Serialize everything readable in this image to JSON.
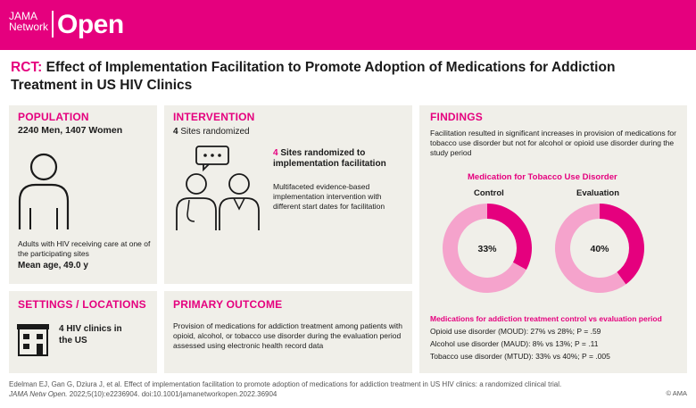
{
  "header": {
    "logo_line1": "JAMA",
    "logo_line2": "Network",
    "logo_big": "Open",
    "brand_color": "#e5007e"
  },
  "title": {
    "prefix": "RCT:",
    "text": "Effect of Implementation Facilitation to Promote Adoption of Medications for Addiction Treatment in US HIV Clinics"
  },
  "population": {
    "label": "POPULATION",
    "counts": "2240 Men, 1407 Women",
    "description": "Adults with HIV receiving care at one of the participating sites",
    "mean_age": "Mean age, 49.0 y",
    "icon": "person-icon"
  },
  "intervention": {
    "label": "INTERVENTION",
    "sites": "4 Sites randomized",
    "group_number": "4",
    "group_title": "Sites randomized to implementation facilitation",
    "group_description": "Multifaceted evidence-based implementation intervention with different start dates for facilitation",
    "icon": "clinicians-icon"
  },
  "settings": {
    "label": "SETTINGS / LOCATIONS",
    "text": "4 HIV clinics in the US",
    "icon": "building-icon"
  },
  "outcome": {
    "label": "PRIMARY OUTCOME",
    "text": "Provision of medications for addiction treatment among patients with opioid, alcohol, or tobacco use disorder during the evaluation period assessed using electronic health record data"
  },
  "findings": {
    "label": "FINDINGS",
    "text": "Facilitation resulted in significant increases in provision of medications for tobacco use disorder but not for alcohol or opioid use disorder during the study period",
    "chart_title": "Medication for Tobacco Use Disorder",
    "list_title": "Medications for addiction treatment control vs evaluation period",
    "rows": [
      "Opioid use disorder (MOUD): 27% vs 28%; P = .59",
      "Alcohol use disorder (MAUD): 8% vs 13%; P = .11",
      "Tobacco use disorder (MTUD): 33% vs 40%; P = .005"
    ]
  },
  "chart_data": [
    {
      "type": "pie",
      "title": "Control",
      "values": [
        33,
        67
      ],
      "label": "33%",
      "colors": [
        "#e5007e",
        "#f5a3cc"
      ]
    },
    {
      "type": "pie",
      "title": "Evaluation",
      "values": [
        40,
        60
      ],
      "label": "40%",
      "colors": [
        "#e5007e",
        "#f5a3cc"
      ]
    }
  ],
  "footer": {
    "citation1": "Edelman EJ, Gan G, Dziura J, et al. Effect of implementation facilitation to promote adoption of medications for addiction treatment in US HIV clinics: a randomized clinical trial.",
    "citation2_journal": "JAMA Netw Open.",
    "citation2_rest": " 2022;5(10):e2236904. doi:10.1001/jamanetworkopen.2022.36904",
    "copyright": "© AMA"
  }
}
